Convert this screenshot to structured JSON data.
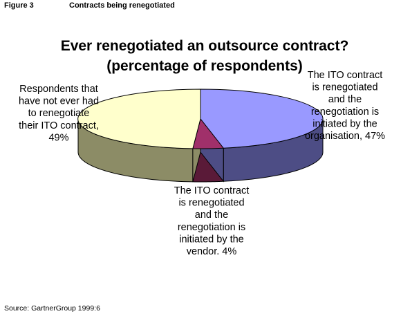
{
  "figure": {
    "number": "Figure 3",
    "caption": "Contracts being renegotiated"
  },
  "source": "Source: GartnerGroup 1999:6",
  "chart_data": {
    "type": "pie",
    "three_d": true,
    "title": [
      "Ever renegotiated an outsource contract?",
      "(percentage of respondents)"
    ],
    "slices": [
      {
        "label": [
          "The ITO contract",
          "is renegotiated",
          "and the",
          "renegotiation is",
          "initiated by the",
          "organisation, 47%"
        ],
        "value": 47,
        "color": "#9999ff",
        "side_color": "#4d4d85"
      },
      {
        "label": [
          "The ITO contract",
          "is renegotiated",
          "and the",
          "renegotiation is",
          "initiated by the",
          "vendor. 4%"
        ],
        "value": 4,
        "color": "#a0306a",
        "side_color": "#5a1a38"
      },
      {
        "label": [
          "Respondents that",
          "have not ever had",
          "to renegotiate",
          "their ITO contract,",
          "49%"
        ],
        "value": 49,
        "color": "#ffffcc",
        "side_color": "#8c8c66"
      }
    ],
    "legend": "none"
  }
}
